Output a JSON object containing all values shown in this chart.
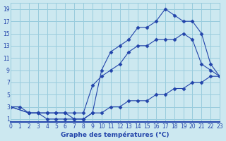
{
  "title": "Graphe des températures (°C)",
  "bg_color": "#cce8f0",
  "grid_color": "#99ccdd",
  "line_color": "#2244aa",
  "x_ticks": [
    0,
    1,
    2,
    3,
    4,
    5,
    6,
    7,
    8,
    9,
    10,
    11,
    12,
    13,
    14,
    15,
    16,
    17,
    18,
    19,
    20,
    21,
    22,
    23
  ],
  "y_ticks": [
    1,
    3,
    5,
    7,
    9,
    11,
    13,
    15,
    17,
    19
  ],
  "xlim": [
    0,
    23
  ],
  "ylim": [
    0.5,
    20
  ],
  "line1_x": [
    0,
    1,
    2,
    3,
    4,
    5,
    6,
    7,
    8,
    9,
    10,
    11,
    12,
    13,
    14,
    15,
    16,
    17,
    18,
    19,
    20,
    21,
    22,
    23
  ],
  "line1_y": [
    3,
    3,
    2,
    2,
    1,
    1,
    1,
    1,
    1,
    2,
    2,
    3,
    3,
    4,
    4,
    4,
    5,
    5,
    6,
    6,
    7,
    7,
    8,
    8
  ],
  "line2_x": [
    0,
    2,
    3,
    4,
    5,
    6,
    7,
    8,
    9,
    10,
    11,
    12,
    13,
    14,
    15,
    16,
    17,
    18,
    19,
    20,
    21,
    22,
    23
  ],
  "line2_y": [
    3,
    2,
    2,
    2,
    2,
    2,
    2,
    2,
    6.5,
    8,
    9,
    10,
    12,
    13,
    13,
    14,
    14,
    14,
    15,
    14,
    10,
    9,
    8
  ],
  "line3_x": [
    0,
    2,
    3,
    4,
    5,
    6,
    7,
    8,
    9,
    10,
    11,
    12,
    13,
    14,
    15,
    16,
    17,
    18,
    19,
    20,
    21,
    22,
    23
  ],
  "line3_y": [
    3,
    2,
    2,
    2,
    2,
    2,
    1,
    1,
    2,
    9,
    12,
    13,
    14,
    16,
    16,
    17,
    19,
    18,
    17,
    17,
    15,
    10,
    8
  ]
}
